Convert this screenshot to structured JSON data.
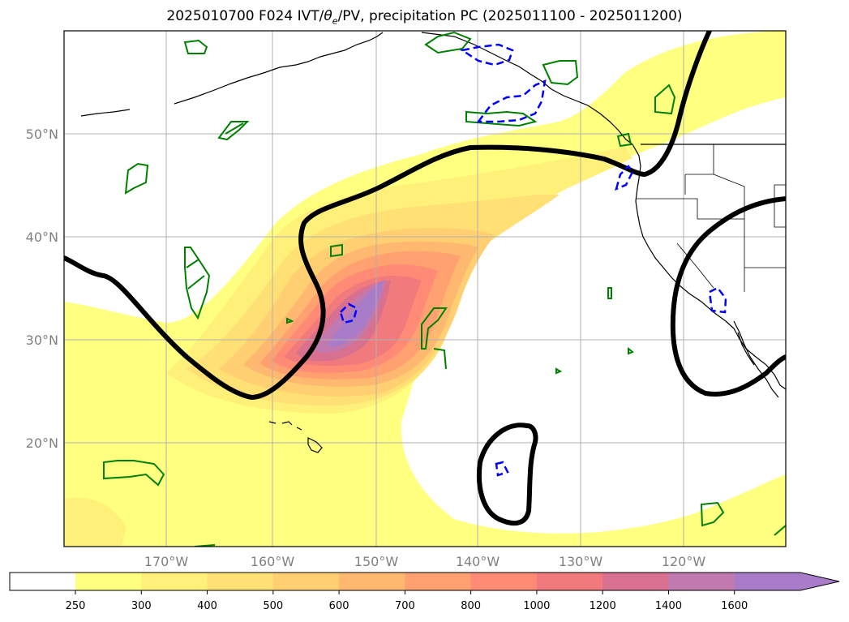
{
  "title": {
    "prefix": "2025010700 F024 IVT/",
    "theta": "θ",
    "theta_sub": "e",
    "suffix": "/PV, precipitation PC (2025011100 - 2025011200)"
  },
  "map": {
    "lat_labels": [
      "50°N",
      "40°N",
      "30°N",
      "20°N"
    ],
    "lon_labels": [
      "170°W",
      "160°W",
      "150°W",
      "140°W",
      "130°W",
      "120°W"
    ],
    "land_color": "#000000",
    "pv_contour_color": "#000000",
    "theta_e_color": "#008000",
    "precip_pc_color": "#0000ff"
  },
  "colorbar": {
    "ticks": [
      "250",
      "300",
      "400",
      "500",
      "600",
      "700",
      "800",
      "1000",
      "1200",
      "1400",
      "1600"
    ],
    "colors": [
      "#ffff80",
      "#fff07a",
      "#ffe075",
      "#ffcf72",
      "#ffb870",
      "#ffa070",
      "#ff8a76",
      "#f07a7c",
      "#d87090",
      "#c07ab0",
      "#a87cc8"
    ],
    "extend": "max"
  }
}
